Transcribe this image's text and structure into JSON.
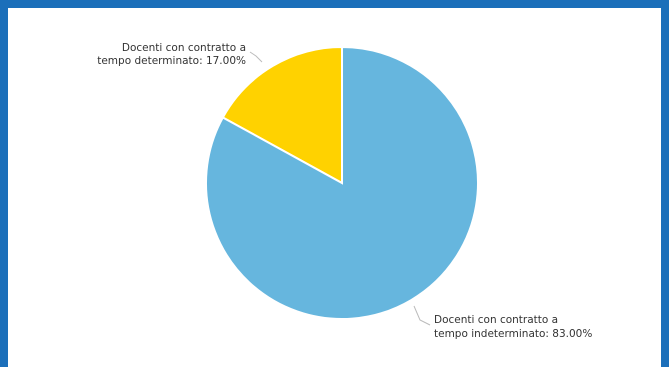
{
  "chart_data": {
    "type": "pie",
    "slices": [
      {
        "label_line1": "Docenti con contratto a",
        "label_line2": "tempo determinato: 17.00%",
        "value": 17.0,
        "color": "#ffd200"
      },
      {
        "label_line1": "Docenti con contratto a",
        "label_line2": "tempo indeterminato: 83.00%",
        "value": 83.0,
        "color": "#66b6de"
      }
    ]
  },
  "frame_color": "#1b6fba"
}
